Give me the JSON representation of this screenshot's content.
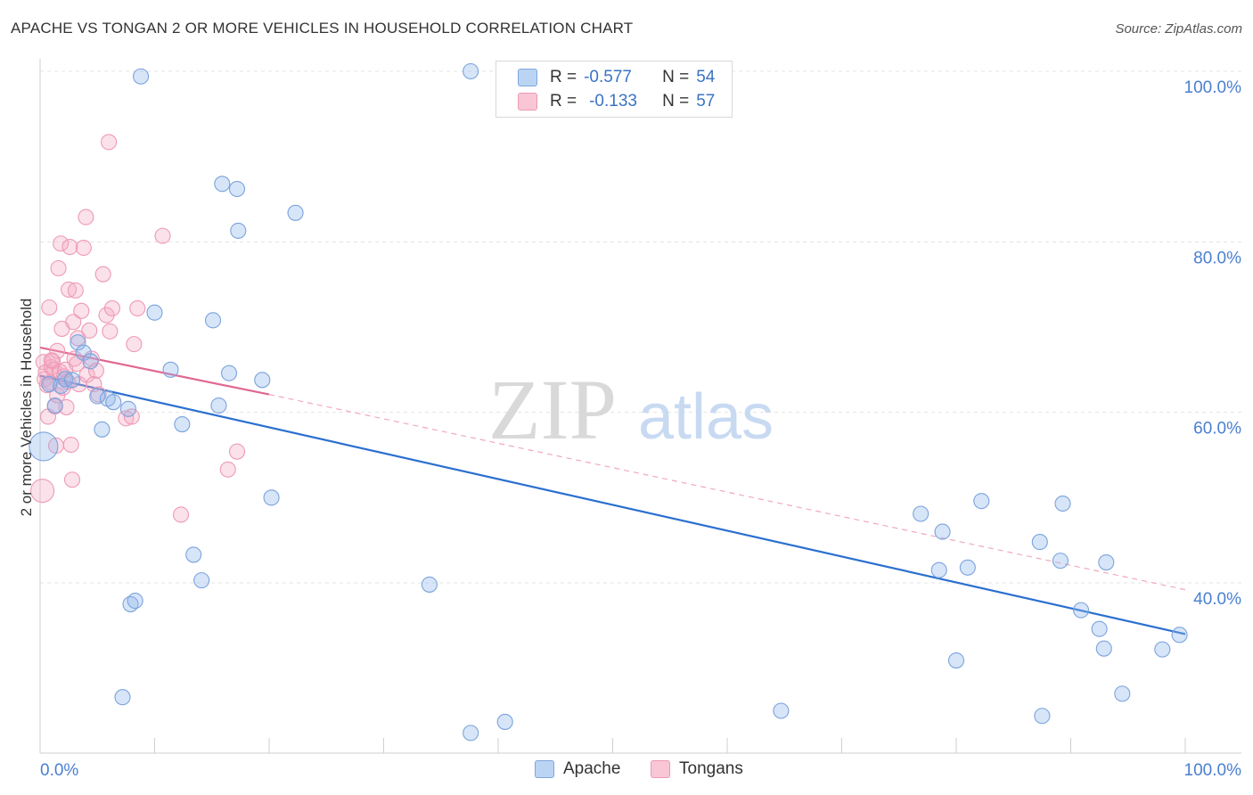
{
  "header": {
    "title": "APACHE VS TONGAN 2 OR MORE VEHICLES IN HOUSEHOLD CORRELATION CHART",
    "source": "Source: ZipAtlas.com"
  },
  "watermark": {
    "zip": "ZIP",
    "atlas": "atlas"
  },
  "legend": {
    "apache": {
      "r_label": "R =",
      "r_value": "-0.577",
      "n_label": "N =",
      "n_value": "54"
    },
    "tongans": {
      "r_label": "R =",
      "r_value": "-0.133",
      "n_label": "N =",
      "n_value": "57"
    }
  },
  "bottom_legend": {
    "apache": "Apache",
    "tongans": "Tongans"
  },
  "chart_data": {
    "type": "scatter",
    "title": "APACHE VS TONGAN 2 OR MORE VEHICLES IN HOUSEHOLD CORRELATION CHART",
    "xlabel": "",
    "ylabel": "2 or more Vehicles in Household",
    "xlim": [
      0,
      100
    ],
    "ylim": [
      20,
      100
    ],
    "x_tick_labels": [
      "0.0%",
      "100.0%"
    ],
    "y_tick_labels": [
      "40.0%",
      "60.0%",
      "80.0%",
      "100.0%"
    ],
    "y_ticks": [
      40,
      60,
      80,
      100
    ],
    "colors": {
      "apache": "#6fa0e0",
      "apache_line": "#2a6fd0",
      "tongans": "#f0a0b8",
      "tongans_line": "#e06890",
      "axis_text": "#4a7fd0"
    },
    "series": [
      {
        "name": "Apache",
        "trend": {
          "x": [
            0,
            100
          ],
          "y": [
            64.3,
            34.0
          ],
          "style": "solid"
        },
        "points": [
          [
            0.3,
            56.0
          ],
          [
            0.8,
            63.3
          ],
          [
            1.3,
            60.8
          ],
          [
            1.8,
            63.1
          ],
          [
            2.2,
            63.9
          ],
          [
            2.8,
            63.8
          ],
          [
            3.3,
            68.2
          ],
          [
            3.8,
            67.0
          ],
          [
            4.4,
            66.0
          ],
          [
            5.0,
            61.9
          ],
          [
            5.4,
            58.0
          ],
          [
            5.9,
            61.6
          ],
          [
            6.4,
            61.2
          ],
          [
            7.2,
            26.6
          ],
          [
            7.7,
            60.4
          ],
          [
            7.9,
            37.5
          ],
          [
            8.3,
            37.9
          ],
          [
            8.8,
            99.4
          ],
          [
            10.0,
            71.7
          ],
          [
            11.4,
            65.0
          ],
          [
            12.4,
            58.6
          ],
          [
            13.4,
            43.3
          ],
          [
            14.1,
            40.3
          ],
          [
            15.1,
            70.8
          ],
          [
            15.6,
            60.8
          ],
          [
            15.9,
            86.8
          ],
          [
            16.5,
            64.6
          ],
          [
            17.2,
            86.2
          ],
          [
            17.3,
            81.3
          ],
          [
            19.4,
            63.8
          ],
          [
            20.2,
            50.0
          ],
          [
            22.3,
            83.4
          ],
          [
            34.0,
            39.8
          ],
          [
            37.6,
            100.0
          ],
          [
            37.6,
            22.4
          ],
          [
            40.6,
            23.7
          ],
          [
            64.7,
            25.0
          ],
          [
            76.9,
            48.1
          ],
          [
            78.5,
            41.5
          ],
          [
            78.8,
            46.0
          ],
          [
            80.0,
            30.9
          ],
          [
            81.0,
            41.8
          ],
          [
            82.2,
            49.6
          ],
          [
            87.3,
            44.8
          ],
          [
            87.5,
            24.4
          ],
          [
            89.1,
            42.6
          ],
          [
            89.3,
            49.3
          ],
          [
            90.9,
            36.8
          ],
          [
            92.5,
            34.6
          ],
          [
            92.9,
            32.3
          ],
          [
            93.1,
            42.4
          ],
          [
            94.5,
            27.0
          ],
          [
            98.0,
            32.2
          ],
          [
            99.5,
            33.9
          ]
        ]
      },
      {
        "name": "Tongans",
        "trend": {
          "x": [
            0,
            20
          ],
          "y": [
            67.6,
            62.1
          ],
          "style": "solid",
          "extended": {
            "x": [
              20,
              100
            ],
            "y": [
              62.1,
              39.2
            ],
            "style": "dashed"
          }
        },
        "points": [
          [
            0.2,
            50.8
          ],
          [
            0.3,
            65.9
          ],
          [
            0.4,
            63.9
          ],
          [
            0.5,
            64.7
          ],
          [
            0.7,
            59.5
          ],
          [
            0.8,
            72.3
          ],
          [
            0.9,
            63.5
          ],
          [
            1.0,
            65.3
          ],
          [
            1.1,
            66.0
          ],
          [
            1.2,
            65.0
          ],
          [
            1.3,
            60.7
          ],
          [
            1.4,
            56.1
          ],
          [
            1.5,
            67.2
          ],
          [
            1.5,
            62.0
          ],
          [
            1.6,
            76.9
          ],
          [
            1.7,
            64.8
          ],
          [
            1.8,
            79.8
          ],
          [
            1.9,
            69.8
          ],
          [
            2.0,
            62.9
          ],
          [
            2.1,
            64.2
          ],
          [
            2.2,
            65.0
          ],
          [
            2.3,
            60.6
          ],
          [
            2.4,
            63.6
          ],
          [
            2.5,
            74.4
          ],
          [
            2.6,
            79.4
          ],
          [
            2.7,
            56.2
          ],
          [
            2.8,
            52.1
          ],
          [
            2.9,
            70.6
          ],
          [
            3.0,
            66.3
          ],
          [
            3.1,
            74.3
          ],
          [
            3.2,
            65.7
          ],
          [
            3.3,
            68.7
          ],
          [
            3.4,
            63.3
          ],
          [
            3.6,
            71.9
          ],
          [
            3.8,
            79.3
          ],
          [
            4.0,
            82.9
          ],
          [
            4.1,
            64.4
          ],
          [
            4.3,
            69.6
          ],
          [
            4.5,
            66.3
          ],
          [
            4.7,
            63.3
          ],
          [
            4.9,
            64.9
          ],
          [
            5.1,
            62.1
          ],
          [
            5.5,
            76.2
          ],
          [
            5.8,
            71.4
          ],
          [
            6.0,
            91.7
          ],
          [
            6.1,
            69.5
          ],
          [
            6.3,
            72.2
          ],
          [
            7.5,
            59.3
          ],
          [
            8.0,
            59.5
          ],
          [
            8.2,
            68.0
          ],
          [
            8.5,
            72.2
          ],
          [
            10.7,
            80.7
          ],
          [
            12.3,
            48.0
          ],
          [
            16.4,
            53.3
          ],
          [
            17.2,
            55.4
          ],
          [
            0.6,
            63.2
          ],
          [
            1.0,
            66.1
          ]
        ]
      }
    ]
  }
}
